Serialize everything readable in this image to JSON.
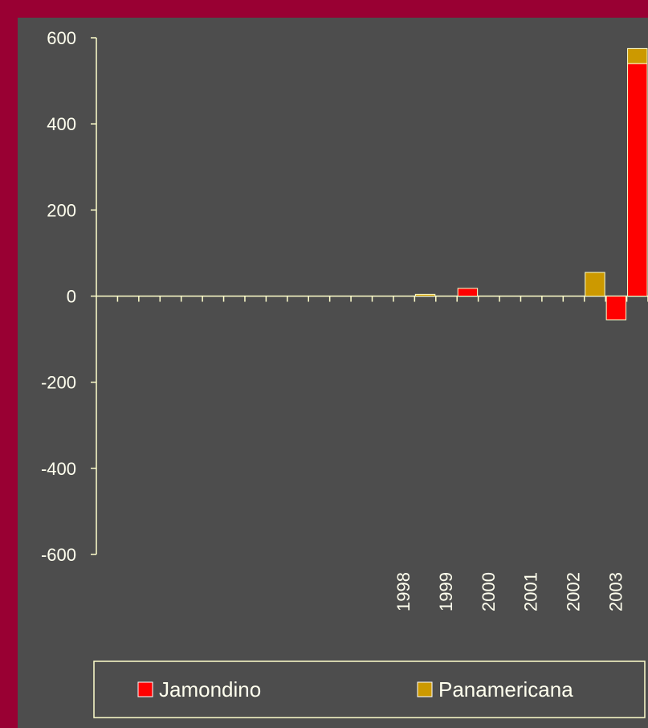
{
  "chart_data": {
    "type": "bar",
    "stacked": true,
    "categories": [
      null,
      null,
      null,
      null,
      null,
      null,
      null,
      null,
      null,
      null,
      null,
      null,
      null,
      null,
      "1998",
      null,
      "1999",
      null,
      "2000",
      null,
      "2001",
      null,
      "2002",
      null,
      "2003",
      null
    ],
    "series": [
      {
        "name": "Jamondino",
        "color": "#ff0000",
        "values": [
          null,
          null,
          null,
          null,
          null,
          null,
          null,
          null,
          null,
          null,
          null,
          null,
          null,
          null,
          null,
          null,
          null,
          18,
          null,
          null,
          null,
          null,
          null,
          null,
          -55,
          540
        ]
      },
      {
        "name": "Panamericana",
        "color": "#cc9900",
        "values": [
          null,
          null,
          null,
          null,
          null,
          null,
          null,
          null,
          null,
          null,
          null,
          null,
          null,
          null,
          null,
          4,
          null,
          null,
          null,
          null,
          null,
          null,
          null,
          55,
          null,
          35
        ]
      }
    ],
    "ylim": [
      -600,
      600
    ],
    "yticks": [
      -600,
      -400,
      -200,
      0,
      200,
      400,
      600
    ],
    "legend": "bottom"
  }
}
